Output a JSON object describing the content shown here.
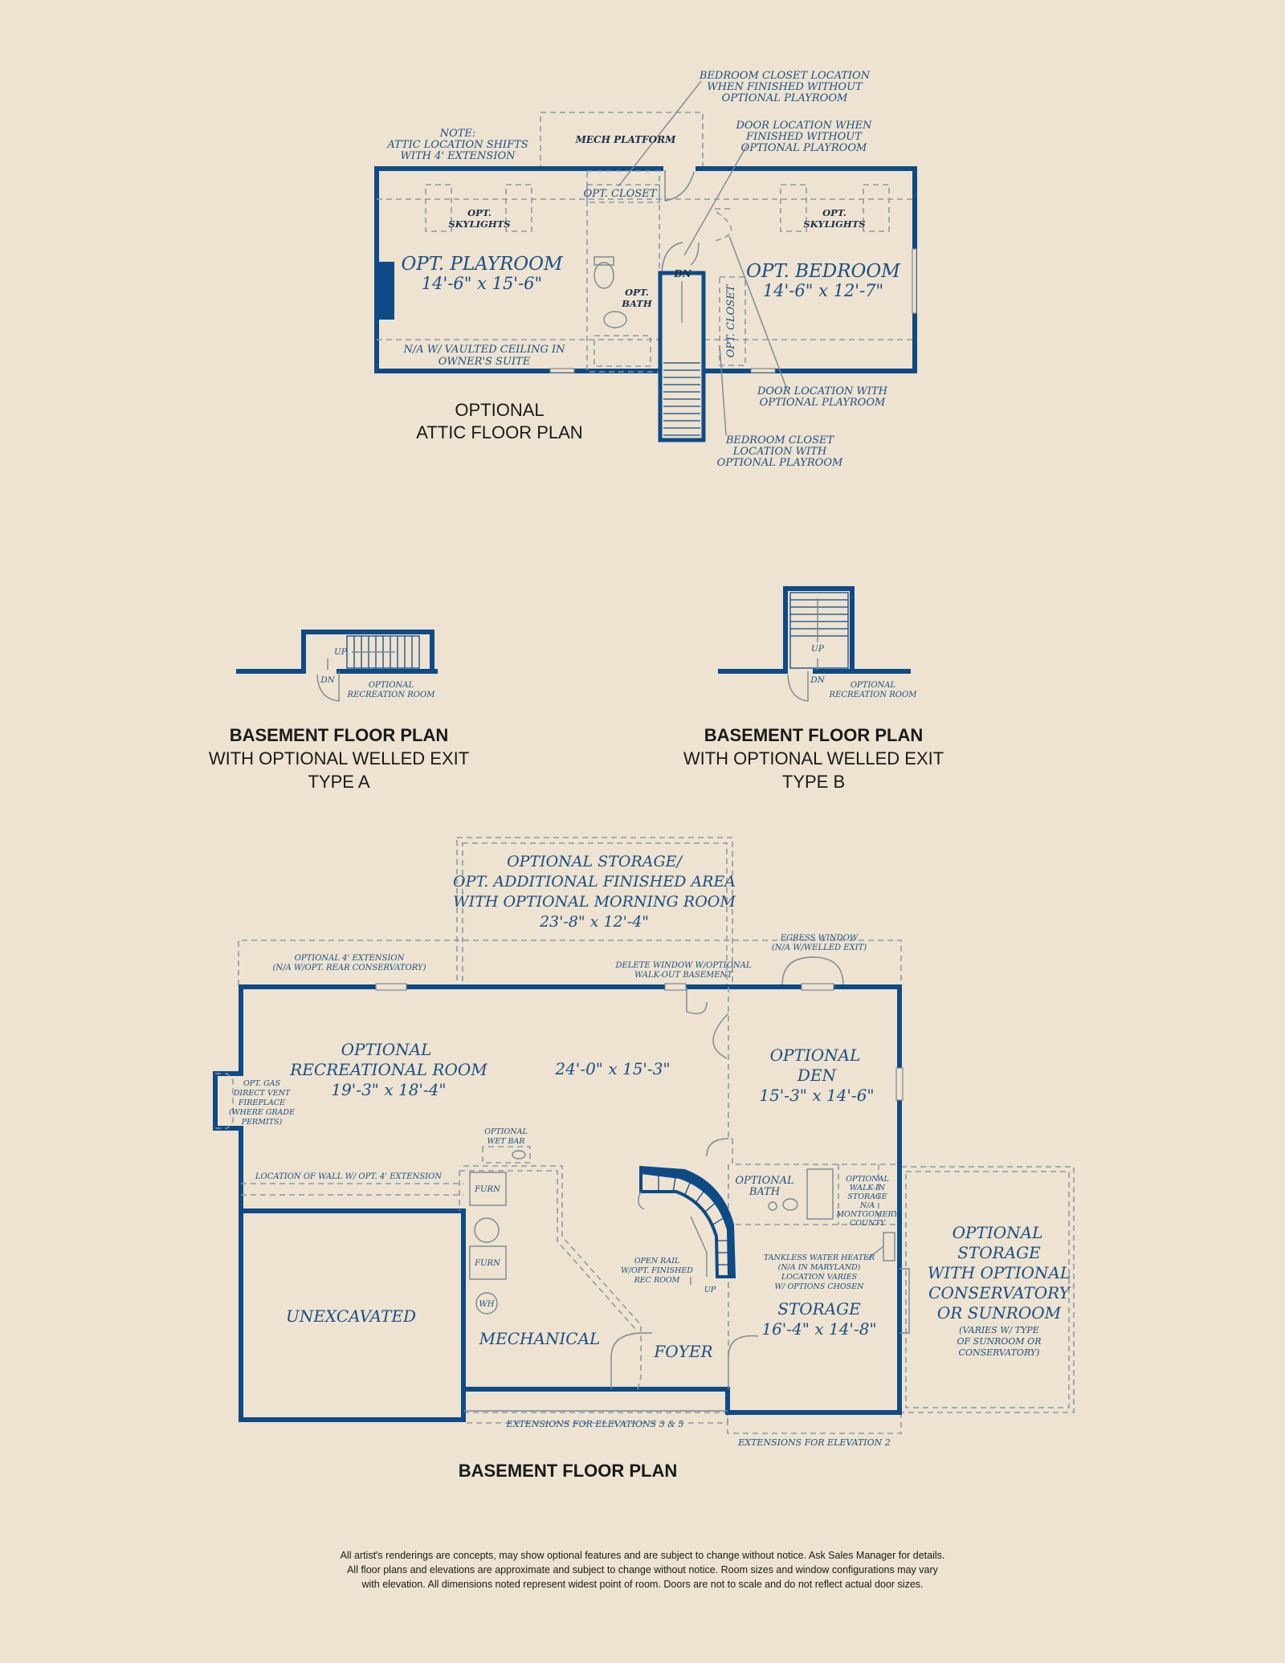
{
  "attic": {
    "title_line1": "OPTIONAL",
    "title_line2": "ATTIC FLOOR PLAN",
    "note_line1": "NOTE:",
    "note_line2": "ATTIC LOCATION SHIFTS",
    "note_line3": "WITH 4' EXTENSION",
    "mech_platform": "MECH PLATFORM",
    "opt_closet_top": "OPT. CLOSET",
    "opt_closet_side": "OPT. CLOSET",
    "skylights_left_1": "OPT.",
    "skylights_left_2": "SKYLIGHTS",
    "skylights_right_1": "OPT.",
    "skylights_right_2": "SKYLIGHTS",
    "playroom_name": "OPT. PLAYROOM",
    "playroom_size": "14'-6\" x 15'-6\"",
    "bedroom_name": "OPT. BEDROOM",
    "bedroom_size": "14'-6\" x 12'-7\"",
    "bath_1": "OPT.",
    "bath_2": "BATH",
    "dn": "DN",
    "vaulted_1": "N/A W/ VAULTED CEILING IN",
    "vaulted_2": "OWNER'S SUITE",
    "callout_closet_1": "BEDROOM CLOSET LOCATION",
    "callout_closet_2": "WHEN FINISHED WITHOUT",
    "callout_closet_3": "OPTIONAL PLAYROOM",
    "callout_door_1": "DOOR LOCATION WHEN",
    "callout_door_2": "FINISHED WITHOUT",
    "callout_door_3": "OPTIONAL PLAYROOM",
    "callout_door_with_1": "DOOR LOCATION WITH",
    "callout_door_with_2": "OPTIONAL PLAYROOM",
    "callout_closet_with_1": "BEDROOM CLOSET",
    "callout_closet_with_2": "LOCATION WITH",
    "callout_closet_with_3": "OPTIONAL PLAYROOM"
  },
  "welled_a": {
    "title": "BASEMENT FLOOR PLAN",
    "subtitle": "WITH OPTIONAL WELLED EXIT",
    "type": "TYPE A",
    "up": "UP",
    "dn": "DN",
    "rec_1": "OPTIONAL",
    "rec_2": "RECREATION ROOM"
  },
  "welled_b": {
    "title": "BASEMENT FLOOR PLAN",
    "subtitle": "WITH OPTIONAL WELLED EXIT",
    "type": "TYPE B",
    "up": "UP",
    "dn": "DN",
    "rec_1": "OPTIONAL",
    "rec_2": "RECREATION ROOM"
  },
  "basement": {
    "title": "BASEMENT FLOOR PLAN",
    "storage_top_1": "OPTIONAL STORAGE/",
    "storage_top_2": "OPT. ADDITIONAL FINISHED AREA",
    "storage_top_3": "WITH OPTIONAL MORNING ROOM",
    "storage_top_4": "23'-8\" x 12'-4\"",
    "ext4_1": "OPTIONAL 4' EXTENSION",
    "ext4_2": "(N/A W/OPT. REAR CONSERVATORY)",
    "delete_window_1": "DELETE WINDOW W/OPTIONAL",
    "delete_window_2": "WALK-OUT BASEMENT",
    "egress_1": "EGRESS WINDOW",
    "egress_2": "(N/A W/WELLED EXIT)",
    "rec_1": "OPTIONAL",
    "rec_2": "RECREATIONAL ROOM",
    "rec_3": "19'-3\" x 18'-4\"",
    "center_size": "24'-0\" x 15'-3\"",
    "den_1": "OPTIONAL",
    "den_2": "DEN",
    "den_3": "15'-3\" x 14'-6\"",
    "fireplace_1": "OPT. GAS",
    "fireplace_2": "DIRECT VENT",
    "fireplace_3": "FIREPLACE",
    "fireplace_4": "(WHERE GRADE",
    "fireplace_5": "PERMITS)",
    "wetbar_1": "OPTIONAL",
    "wetbar_2": "WET BAR",
    "wall_ext": "LOCATION OF WALL W/ OPT. 4' EXTENSION",
    "furn_1": "FURN",
    "furn_2": "FURN",
    "wh": "WH",
    "unexcavated": "UNEXCAVATED",
    "mechanical": "MECHANICAL",
    "foyer": "FOYER",
    "open_rail_1": "OPEN RAIL",
    "open_rail_2": "W/OPT. FINISHED",
    "open_rail_3": "REC ROOM",
    "up": "UP",
    "opt_bath_1": "OPTIONAL",
    "opt_bath_2": "BATH",
    "walkin_1": "OPTIONAL",
    "walkin_2": "WALK-IN",
    "walkin_3": "STORAGE",
    "walkin_4": "N/A",
    "walkin_5": "MONTGOMERY",
    "walkin_6": "COUNTY",
    "tankless_1": "TANKLESS WATER HEATER",
    "tankless_2": "(N/A IN MARYLAND)",
    "tankless_3": "LOCATION VARIES",
    "tankless_4": "W/ OPTIONS CHOSEN",
    "storage_1": "STORAGE",
    "storage_2": "16'-4\" x 14'-8\"",
    "cons_1": "OPTIONAL",
    "cons_2": "STORAGE",
    "cons_3": "WITH OPTIONAL",
    "cons_4": "CONSERVATORY",
    "cons_5": "OR SUNROOM",
    "cons_6": "(VARIES W/ TYPE",
    "cons_7": "OF SUNROOM OR",
    "cons_8": "CONSERVATORY)",
    "ext_35": "EXTENSIONS FOR ELEVATIONS 3 & 5",
    "ext_2": "EXTENSIONS FOR ELEVATION 2"
  },
  "disclaimer": {
    "line1": "All artist's renderings are concepts, may show optional features and are subject to change without notice. Ask Sales Manager for details.",
    "line2": "All floor plans and elevations are approximate and subject to change without notice. Room sizes and window configurations may vary",
    "line3": "with elevation. All dimensions noted represent widest point of room. Doors are not to scale and do not reflect actual door sizes."
  },
  "colors": {
    "background": "#EDE3D0",
    "wall": "#0E4A86",
    "label": "#1C4F86",
    "dashed": "#8C99A8"
  }
}
